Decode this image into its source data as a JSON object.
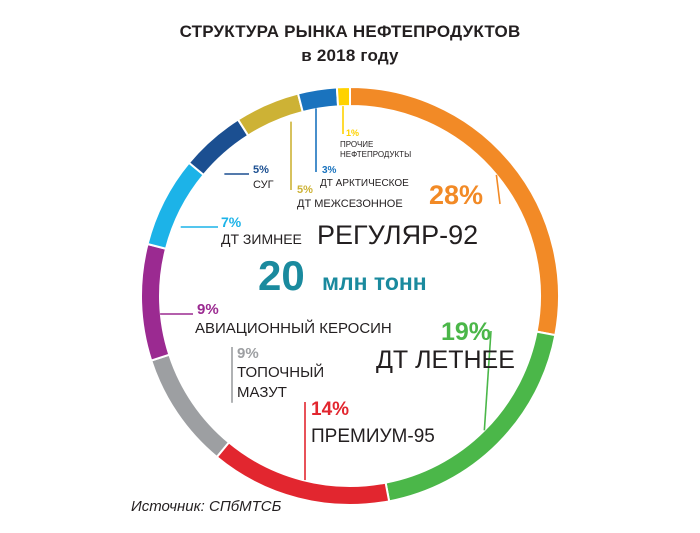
{
  "title": "СТРУКТУРА РЫНКА НЕФТЕПРОДУКТОВ",
  "subtitle": "в 2018 году",
  "source": "Источник: СПбМТСБ",
  "center": {
    "value": "20",
    "unit": "млн тонн",
    "color": "#1a8a9e"
  },
  "chart_data": {
    "type": "pie",
    "title": "СТРУКТУРА РЫНКА НЕФТЕПРОДУКТОВ",
    "subtitle": "в 2018 году",
    "total_label": "20 млн тонн",
    "legend": "labels-inside",
    "slices": [
      {
        "label": "РЕГУЛЯР-92",
        "value": 28,
        "pct_label": "28%",
        "color": "#f28a26"
      },
      {
        "label": "ДТ ЛЕТНЕЕ",
        "value": 19,
        "pct_label": "19%",
        "color": "#4bb749"
      },
      {
        "label": "ПРЕМИУМ-95",
        "value": 14,
        "pct_label": "14%",
        "color": "#e2262f"
      },
      {
        "label": "ТОПОЧНЫЙ МАЗУТ",
        "value": 9,
        "pct_label": "9%",
        "color": "#9d9fa2"
      },
      {
        "label": "АВИАЦИОННЫЙ КЕРОСИН",
        "value": 9,
        "pct_label": "9%",
        "color": "#9b2a91"
      },
      {
        "label": "ДТ ЗИМНЕЕ",
        "value": 7,
        "pct_label": "7%",
        "color": "#1cb3e8"
      },
      {
        "label": "СУГ",
        "value": 5,
        "pct_label": "5%",
        "color": "#1b4f91"
      },
      {
        "label": "ДТ МЕЖСЕЗОННОЕ",
        "value": 5,
        "pct_label": "5%",
        "color": "#cdb235"
      },
      {
        "label": "ДТ АРКТИЧЕСКОЕ",
        "value": 3,
        "pct_label": "3%",
        "color": "#1a73be"
      },
      {
        "label": "ПРОЧИЕ НЕФТЕПРОДУКТЫ",
        "value": 1,
        "pct_label": "1%",
        "color": "#ffd200"
      }
    ]
  }
}
